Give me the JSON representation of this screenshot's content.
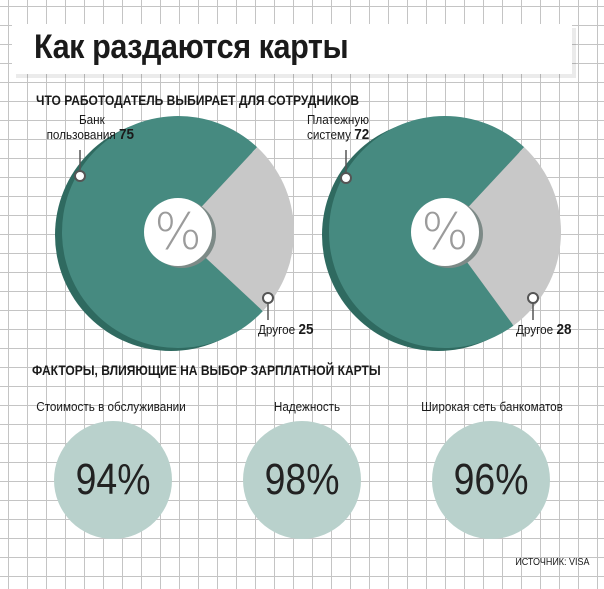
{
  "title": "Как раздаются карты",
  "section1_title": "ЧТО РАБОТОДАТЕЛЬ ВЫБИРАЕТ ДЛЯ СОТРУДНИКОВ",
  "section2_title": "ФАКТОРЫ, ВЛИЯЮЩИЕ НА ВЫБОР ЗАРПЛАТНОЙ  КАРТЫ",
  "source": "ИСТОЧНИК: VISA",
  "center_symbol": "%",
  "colors": {
    "main": "#468a80",
    "main_dark": "#2f6a60",
    "other": "#c8c8c8",
    "factor_circle": "#b9d1cc"
  },
  "chart_data": [
    {
      "type": "pie",
      "categories": [
        "Банк пользования",
        "Другое"
      ],
      "labels": [
        {
          "text_lines": [
            "Банк",
            "пользования"
          ],
          "value": "75"
        },
        {
          "text_lines": [
            "Другое"
          ],
          "value": "25"
        }
      ],
      "values": [
        75,
        25
      ],
      "unit": "%"
    },
    {
      "type": "pie",
      "categories": [
        "Платежную систему",
        "Другое"
      ],
      "labels": [
        {
          "text_lines": [
            "Платежную",
            "систему"
          ],
          "value": "72"
        },
        {
          "text_lines": [
            "Другое"
          ],
          "value": "28"
        }
      ],
      "values": [
        72,
        28
      ],
      "unit": "%"
    },
    {
      "type": "bar",
      "categories": [
        "Стоимость в обслуживании",
        "Надежность",
        "Широкая сеть банкоматов"
      ],
      "values": [
        94,
        98,
        96
      ],
      "value_labels": [
        "94%",
        "98%",
        "96%"
      ],
      "unit": "%"
    }
  ]
}
